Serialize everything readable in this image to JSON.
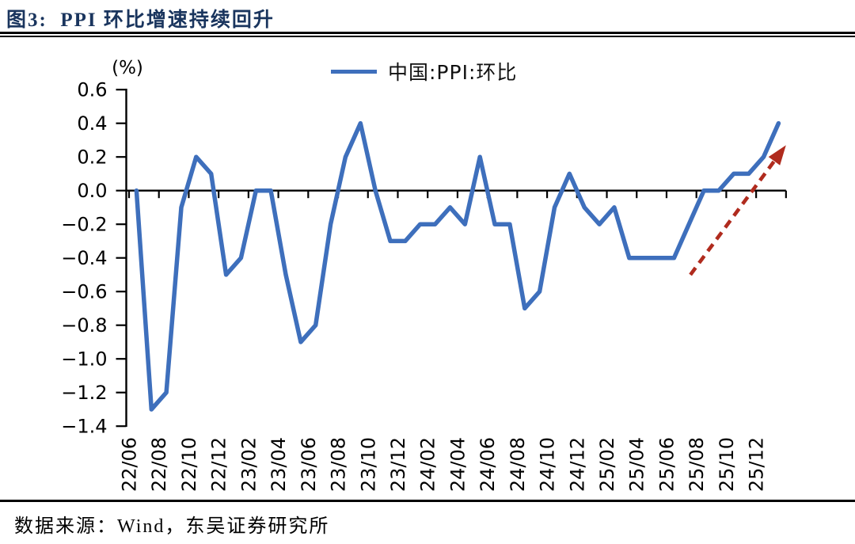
{
  "page": {
    "title": "图3:  PPI 环比增速持续回升",
    "source_note": "数据来源：Wind，东吴证券研究所"
  },
  "legend": {
    "label": "中国:PPI:环比"
  },
  "colors": {
    "line_blue": "#3e6fbc",
    "arrow_red": "#b02b1e",
    "title_navy": "#1a355e",
    "axis_black": "#000000"
  },
  "chart_data": {
    "type": "line",
    "title": "图3: PPI 环比增速持续回升",
    "unit_label": "(%)",
    "xlabel": "",
    "ylabel": "(%)",
    "ylim": [
      -1.4,
      0.6
    ],
    "grid": "off",
    "legend_position": "top-center",
    "y_ticks": [
      0.6,
      0.4,
      0.2,
      0.0,
      -0.2,
      -0.4,
      -0.6,
      -0.8,
      -1.0,
      -1.2,
      -1.4
    ],
    "x_tick_labels": [
      "22/06",
      "22/08",
      "22/10",
      "22/12",
      "23/02",
      "23/04",
      "23/06",
      "23/08",
      "23/10",
      "23/12",
      "24/02",
      "24/04",
      "24/06",
      "24/08",
      "24/10",
      "24/12",
      "25/02",
      "25/04",
      "25/06",
      "25/08",
      "25/10",
      "25/12"
    ],
    "series": [
      {
        "name": "中国:PPI:环比",
        "color": "#3e6fbc",
        "x": [
          "22/06",
          "22/07",
          "22/08",
          "22/09",
          "22/10",
          "22/11",
          "22/12",
          "23/01",
          "23/02",
          "23/03",
          "23/04",
          "23/05",
          "23/06",
          "23/07",
          "23/08",
          "23/09",
          "23/10",
          "23/11",
          "23/12",
          "24/01",
          "24/02",
          "24/03",
          "24/04",
          "24/05",
          "24/06",
          "24/07",
          "24/08",
          "24/09",
          "24/10",
          "24/11",
          "24/12",
          "25/01",
          "25/02",
          "25/03",
          "25/04",
          "25/05",
          "25/06",
          "25/07",
          "25/08",
          "25/09",
          "25/10",
          "25/11",
          "25/12",
          "26/01"
        ],
        "values": [
          0.0,
          -1.3,
          -1.2,
          -0.1,
          0.2,
          0.1,
          -0.5,
          -0.4,
          0.0,
          0.0,
          -0.5,
          -0.9,
          -0.8,
          -0.2,
          0.2,
          0.4,
          0.0,
          -0.3,
          -0.3,
          -0.2,
          -0.2,
          -0.1,
          -0.2,
          0.2,
          -0.2,
          -0.2,
          -0.7,
          -0.6,
          -0.1,
          0.1,
          -0.1,
          -0.2,
          -0.1,
          -0.4,
          -0.4,
          -0.4,
          -0.4,
          -0.2,
          0.0,
          0.0,
          0.1,
          0.1,
          0.2,
          0.4
        ]
      }
    ],
    "annotations": [
      {
        "type": "trend-arrow",
        "style": "dashed",
        "color": "#b02b1e",
        "meaning": "环比增速持续回升（上行趋势）",
        "from_index": 37.1,
        "from_value": -0.5,
        "to_index": 43.5,
        "to_value": 0.27
      }
    ]
  }
}
